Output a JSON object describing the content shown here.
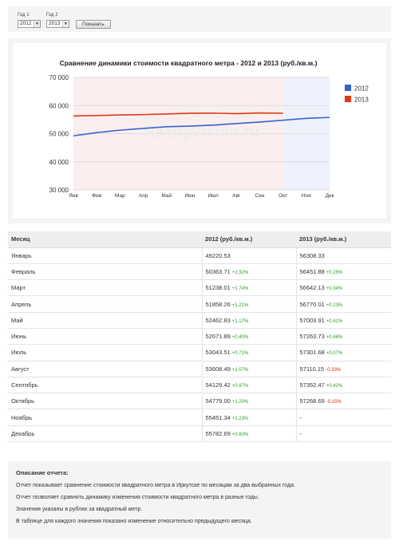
{
  "controls": {
    "year1_label": "Год 1",
    "year1_value": "2012",
    "year2_label": "Год 2",
    "year2_value": "2013",
    "show_button": "Показать"
  },
  "watermark": "RealtyVision.ru",
  "chart_data": {
    "type": "line",
    "title": "Сравнение динамики стоимости квадратного метра - 2012 и 2013 (руб./кв.м.)",
    "categories": [
      "Янв",
      "Фев",
      "Мар",
      "Апр",
      "Май",
      "Июн",
      "Июл",
      "Авг",
      "Сен",
      "Окт",
      "Ноя",
      "Дек"
    ],
    "ylim": [
      30000,
      70000
    ],
    "yticks": [
      "70 000",
      "60 000",
      "50 000",
      "40 000",
      "30 000"
    ],
    "legend_position": "right",
    "series": [
      {
        "name": "2012",
        "color": "#3366cc",
        "values": [
          49220.53,
          50363.71,
          51238.01,
          51858.26,
          52462.83,
          52671.89,
          53043.51,
          53608.49,
          54129.42,
          54779.0,
          55451.34,
          55782.69
        ]
      },
      {
        "name": "2013",
        "color": "#dc3912",
        "values": [
          56308.33,
          56451.88,
          56642.13,
          56770.01,
          57003.91,
          57263.73,
          57301.68,
          57110.15,
          57352.47,
          57268.69,
          null,
          null
        ]
      }
    ]
  },
  "table": {
    "headers": [
      "Месяц",
      "2012 (руб./кв.м.)",
      "2013 (руб./кв.м.)"
    ],
    "rows": [
      {
        "month": "Январь",
        "v1": "49220.53",
        "c1": "",
        "v2": "56308.33",
        "c2": ""
      },
      {
        "month": "Февраль",
        "v1": "50363.71",
        "c1": "+2.32%",
        "v2": "56451.88",
        "c2": "+0.25%"
      },
      {
        "month": "Март",
        "v1": "51238.01",
        "c1": "+1.74%",
        "v2": "56642.13",
        "c2": "+0.34%"
      },
      {
        "month": "Апрель",
        "v1": "51858.26",
        "c1": "+1.21%",
        "v2": "56770.01",
        "c2": "+0.23%"
      },
      {
        "month": "Май",
        "v1": "52462.83",
        "c1": "+1.17%",
        "v2": "57003.91",
        "c2": "+0.41%"
      },
      {
        "month": "Июнь",
        "v1": "52671.89",
        "c1": "+0.40%",
        "v2": "57263.73",
        "c2": "+0.46%"
      },
      {
        "month": "Июль",
        "v1": "53043.51",
        "c1": "+0.71%",
        "v2": "57301.68",
        "c2": "+0.07%"
      },
      {
        "month": "Август",
        "v1": "53608.49",
        "c1": "+1.07%",
        "v2": "57110.15",
        "c2": "-0.33%"
      },
      {
        "month": "Сентябрь",
        "v1": "54129.42",
        "c1": "+0.97%",
        "v2": "57352.47",
        "c2": "+0.42%"
      },
      {
        "month": "Октябрь",
        "v1": "54779.00",
        "c1": "+1.20%",
        "v2": "57268.69",
        "c2": "-0.15%"
      },
      {
        "month": "Ноябрь",
        "v1": "55451.34",
        "c1": "+1.23%",
        "v2": "-",
        "c2": ""
      },
      {
        "month": "Декабрь",
        "v1": "55782.69",
        "c1": "+0.60%",
        "v2": "-",
        "c2": ""
      }
    ]
  },
  "description": {
    "title": "Описание отчета:",
    "lines": [
      "Отчет показывает сравнение стоимости квадратного метра в Иркутске по месяцам за два выбранных года.",
      "Отчет позволяет сравнить динамику изменения стоимости квадратного метра в разные годы.",
      "Значения указаны в рублях за квадратный метр.",
      "В таблице для каждого значения показано изменение относительно предыдущего месяца."
    ]
  }
}
